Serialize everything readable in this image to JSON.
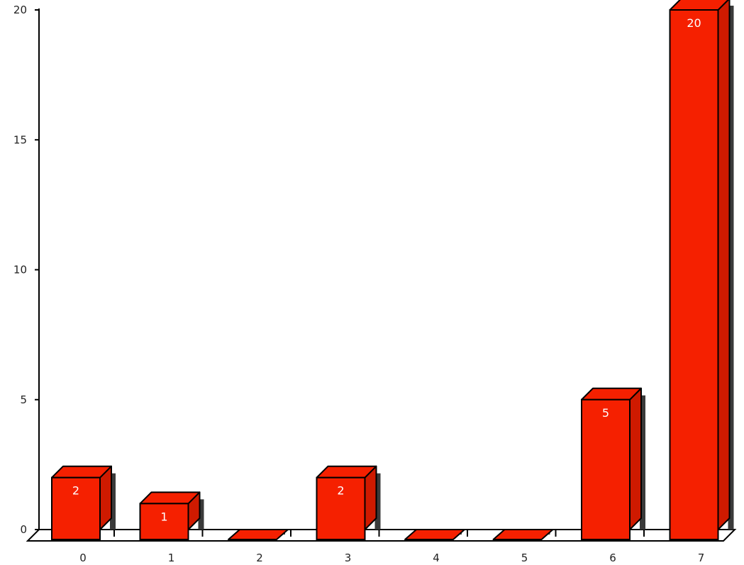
{
  "chart_data": {
    "type": "bar",
    "style": "3d",
    "title": "",
    "xlabel": "",
    "ylabel": "",
    "categories": [
      "0",
      "1",
      "2",
      "3",
      "4",
      "5",
      "6",
      "7"
    ],
    "values": [
      2,
      1,
      0,
      2,
      0,
      0,
      5,
      20
    ],
    "data_labels": [
      "2",
      "1",
      "",
      "2",
      "",
      "",
      "5",
      "20"
    ],
    "ylim": [
      0,
      20
    ],
    "yticks": [
      "0",
      "5",
      "10",
      "15",
      "20"
    ],
    "grid": false,
    "legend": "none",
    "colors": {
      "bar_face": "#f52000",
      "bar_top": "#f52000",
      "bar_side": "#cf1a00",
      "shadow": "#3a3a3a",
      "outline": "#000000",
      "axis": "#000000",
      "floor": "#ffffff",
      "label_text": "#ffffff",
      "tick_text": "#222222"
    }
  }
}
